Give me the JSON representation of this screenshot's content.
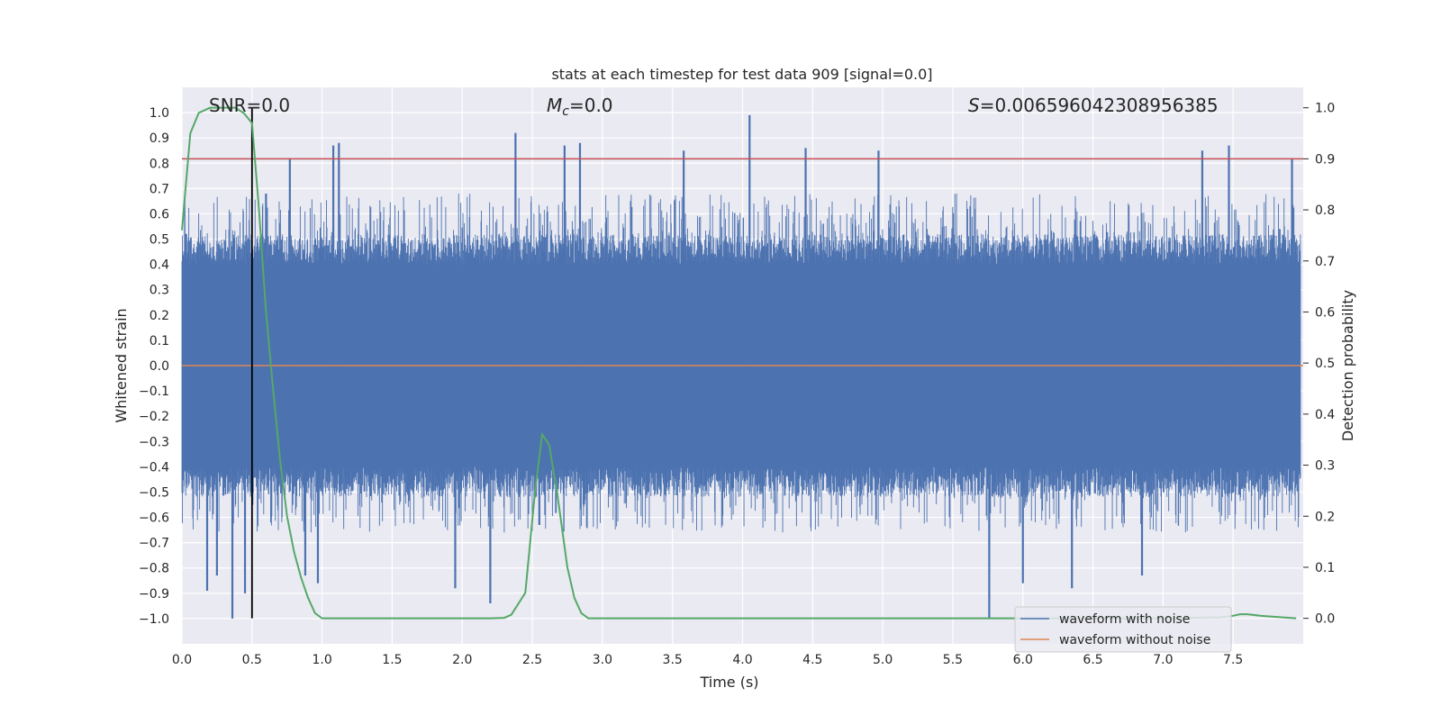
{
  "chart_data": {
    "type": "line",
    "title": "stats at each timestep for test data 909 [signal=0.0]",
    "xlabel": "Time (s)",
    "ylabel": "Whitened strain",
    "y2label": "Detection probability",
    "xlim": [
      0.0,
      8.0
    ],
    "ylim": [
      -1.1,
      1.1
    ],
    "y2lim": [
      -0.05,
      1.04
    ],
    "xticks": [
      0.0,
      0.5,
      1.0,
      1.5,
      2.0,
      2.5,
      3.0,
      3.5,
      4.0,
      4.5,
      5.0,
      5.5,
      6.0,
      6.5,
      7.0,
      7.5
    ],
    "yticks": [
      -1.0,
      -0.9,
      -0.8,
      -0.7,
      -0.6,
      -0.5,
      -0.4,
      -0.3,
      -0.2,
      -0.1,
      0.0,
      0.1,
      0.2,
      0.3,
      0.4,
      0.5,
      0.6,
      0.7,
      0.8,
      0.9,
      1.0
    ],
    "y2ticks": [
      0.0,
      0.1,
      0.2,
      0.3,
      0.4,
      0.5,
      0.6,
      0.7,
      0.8,
      0.9,
      1.0
    ],
    "xtick_labels": [
      "0.0",
      "0.5",
      "1.0",
      "1.5",
      "2.0",
      "2.5",
      "3.0",
      "3.5",
      "4.0",
      "4.5",
      "5.0",
      "5.5",
      "6.0",
      "6.5",
      "7.0",
      "7.5"
    ],
    "ytick_labels": [
      "−1.0",
      "−0.9",
      "−0.8",
      "−0.7",
      "−0.6",
      "−0.5",
      "−0.4",
      "−0.3",
      "−0.2",
      "−0.1",
      "0.0",
      "0.1",
      "0.2",
      "0.3",
      "0.4",
      "0.5",
      "0.6",
      "0.7",
      "0.8",
      "0.9",
      "1.0"
    ],
    "y2tick_labels": [
      "0.0",
      "0.1",
      "0.2",
      "0.3",
      "0.4",
      "0.5",
      "0.6",
      "0.7",
      "0.8",
      "0.9",
      "1.0"
    ],
    "annotations": {
      "snr": "SNR=0.0",
      "mc_symbol": "M",
      "mc_sub": "c",
      "mc_value": "=0.0",
      "s_symbol": "S",
      "s_value": "=0.006596042308956385"
    },
    "threshold_probability": 0.9,
    "marker_time": 0.5,
    "series": [
      {
        "name": "waveform with noise",
        "color": "#4c72b0",
        "axis": "left",
        "spikes_high": [
          [
            0.03,
            0.52
          ],
          [
            0.18,
            -0.89
          ],
          [
            0.25,
            -0.83
          ],
          [
            0.36,
            -1.0
          ],
          [
            0.45,
            -0.9
          ],
          [
            0.6,
            0.68
          ],
          [
            0.77,
            0.82
          ],
          [
            0.88,
            -0.83
          ],
          [
            0.97,
            -0.86
          ],
          [
            1.12,
            0.88
          ],
          [
            1.08,
            0.87
          ],
          [
            2.38,
            0.92
          ],
          [
            2.55,
            -0.63
          ],
          [
            2.73,
            0.87
          ],
          [
            2.84,
            0.88
          ],
          [
            3.58,
            0.85
          ],
          [
            4.05,
            0.99
          ],
          [
            4.45,
            0.86
          ],
          [
            4.97,
            0.85
          ],
          [
            5.76,
            -1.0
          ],
          [
            6.35,
            -0.88
          ],
          [
            7.28,
            0.85
          ],
          [
            7.47,
            0.87
          ],
          [
            7.92,
            0.82
          ],
          [
            1.95,
            -0.88
          ],
          [
            2.2,
            -0.94
          ],
          [
            6.0,
            -0.86
          ],
          [
            6.85,
            -0.83
          ]
        ],
        "typical_envelope": [
          -0.4,
          0.4
        ]
      },
      {
        "name": "waveform without noise",
        "color": "#dd8452",
        "axis": "left",
        "constant": 0.0
      },
      {
        "name": "detection probability",
        "color": "#55a868",
        "axis": "right",
        "x": [
          0.0,
          0.06,
          0.12,
          0.2,
          0.3,
          0.38,
          0.44,
          0.5,
          0.55,
          0.6,
          0.65,
          0.7,
          0.75,
          0.8,
          0.85,
          0.9,
          0.95,
          1.0,
          1.5,
          2.0,
          2.2,
          2.3,
          2.35,
          2.45,
          2.52,
          2.57,
          2.62,
          2.68,
          2.75,
          2.8,
          2.85,
          2.9,
          3.0,
          3.5,
          4.0,
          5.0,
          6.0,
          7.0,
          7.4,
          7.5,
          7.55,
          7.6,
          7.7,
          7.8,
          7.95
        ],
        "y": [
          0.76,
          0.95,
          0.99,
          1.0,
          1.0,
          1.0,
          0.99,
          0.97,
          0.8,
          0.6,
          0.45,
          0.31,
          0.2,
          0.13,
          0.08,
          0.04,
          0.01,
          0.0,
          0.0,
          0.0,
          0.0,
          0.001,
          0.007,
          0.05,
          0.25,
          0.36,
          0.34,
          0.24,
          0.1,
          0.04,
          0.01,
          0.0,
          0.0,
          0.0,
          0.0,
          0.0,
          0.0,
          0.0,
          0.002,
          0.005,
          0.008,
          0.008,
          0.005,
          0.003,
          0.0
        ]
      }
    ],
    "legend": {
      "placement": "lower-right",
      "entries": [
        "waveform with noise",
        "waveform without noise"
      ]
    },
    "colors": {
      "background": "#eaeaf2",
      "grid": "#ffffff",
      "threshold": "#c44e52",
      "marker": "#000000"
    },
    "grid": true
  }
}
